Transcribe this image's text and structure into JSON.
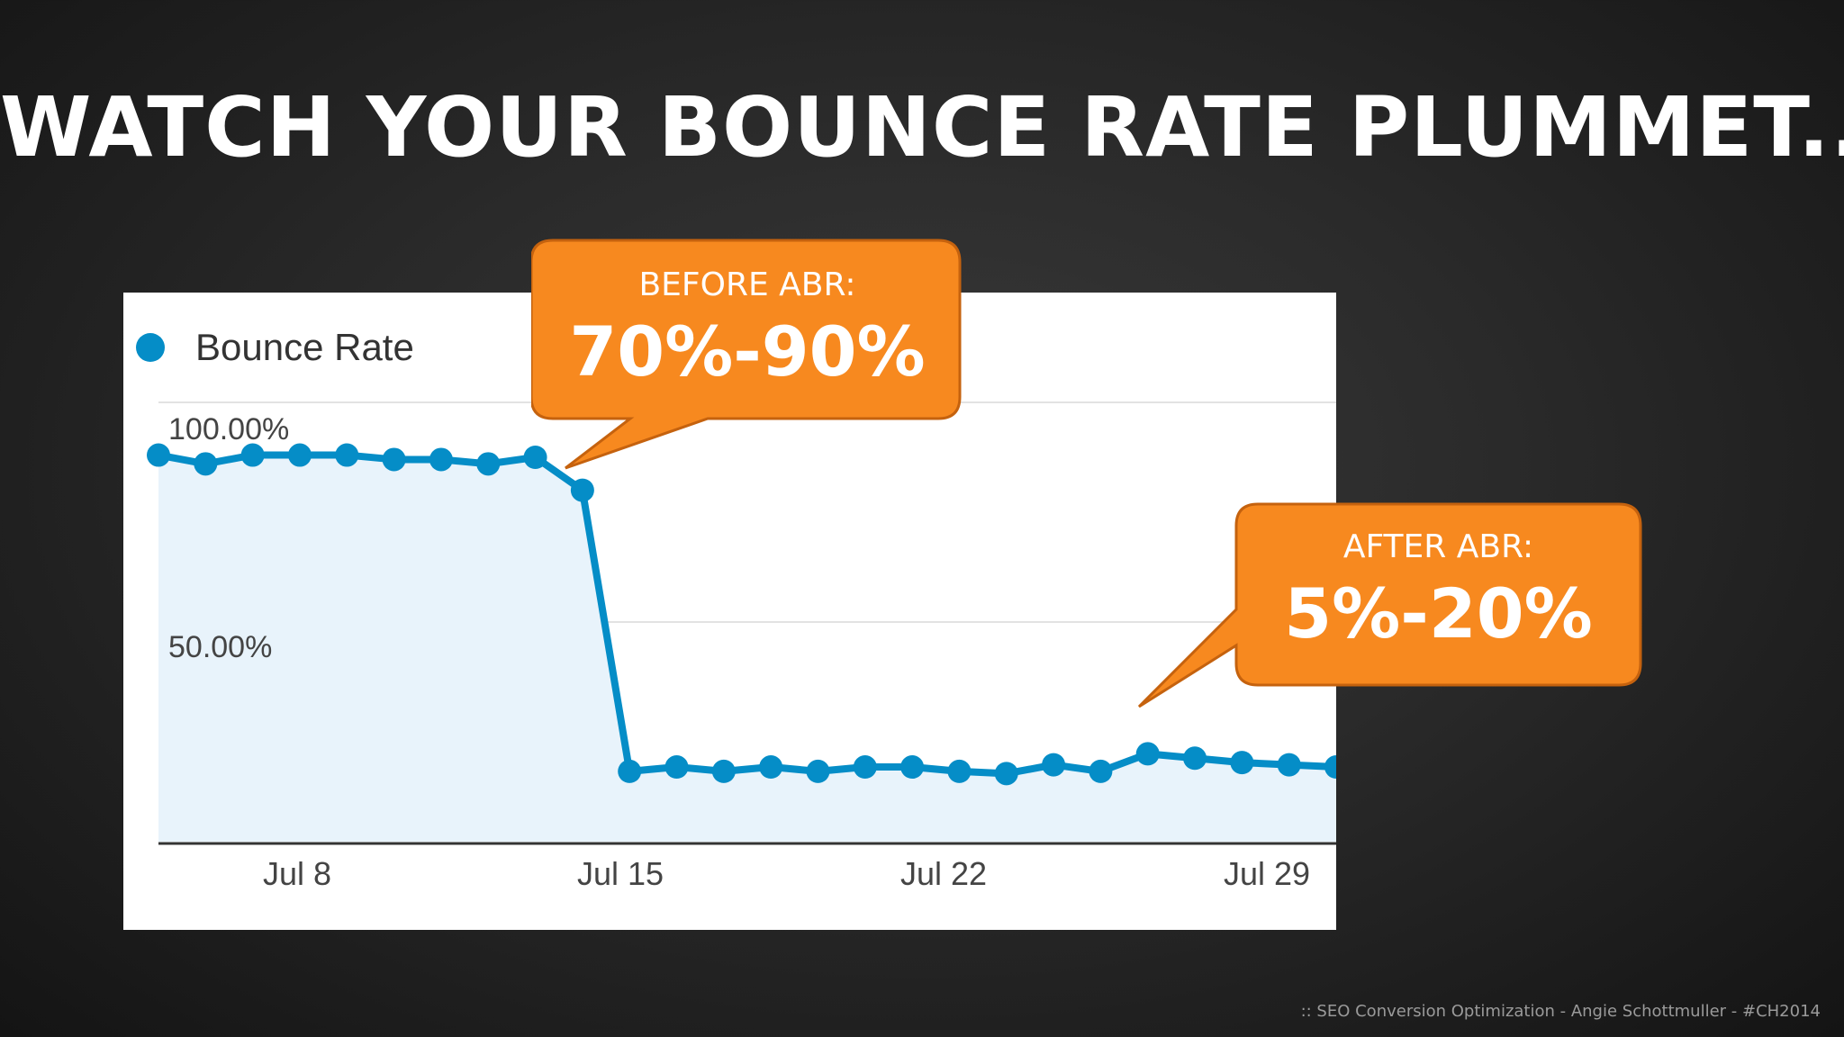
{
  "slide": {
    "title": "WATCH YOUR BOUNCE RATE PLUMMET...",
    "footer": "::  SEO Conversion Optimization - Angie Schottmuller - #CH2014"
  },
  "callouts": {
    "before": {
      "heading": "BEFORE ABR:",
      "value": "70%-90%"
    },
    "after": {
      "heading": "AFTER ABR:",
      "value": "5%-20%"
    }
  },
  "colors": {
    "series": "#058dc7",
    "area": "#e8f3fb",
    "callout": "#f7891f",
    "callout_border": "#c5620e"
  },
  "chart_data": {
    "type": "area",
    "legend": "top-left",
    "grid": true,
    "series": [
      {
        "name": "Bounce Rate",
        "values": [
          88,
          86,
          88,
          88,
          88,
          87,
          87,
          86,
          87.5,
          80,
          16,
          17,
          16,
          17,
          16,
          17,
          17,
          16,
          15.5,
          17.5,
          16,
          20,
          19,
          18,
          17.5,
          17
        ]
      }
    ],
    "x": [
      "Jul 5",
      "Jul 6",
      "Jul 7",
      "Jul 8",
      "Jul 9",
      "Jul 10",
      "Jul 11",
      "Jul 12",
      "Jul 13",
      "Jul 14",
      "Jul 15",
      "Jul 16",
      "Jul 17",
      "Jul 18",
      "Jul 19",
      "Jul 20",
      "Jul 21",
      "Jul 22",
      "Jul 23",
      "Jul 24",
      "Jul 25",
      "Jul 26",
      "Jul 27",
      "Jul 28",
      "Jul 29",
      "Jul 30"
    ],
    "xticks": [
      "Jul 8",
      "Jul 15",
      "Jul 22",
      "Jul 29"
    ],
    "yticks": [
      "100.00%",
      "50.00%"
    ],
    "ylim": [
      0,
      100
    ]
  }
}
